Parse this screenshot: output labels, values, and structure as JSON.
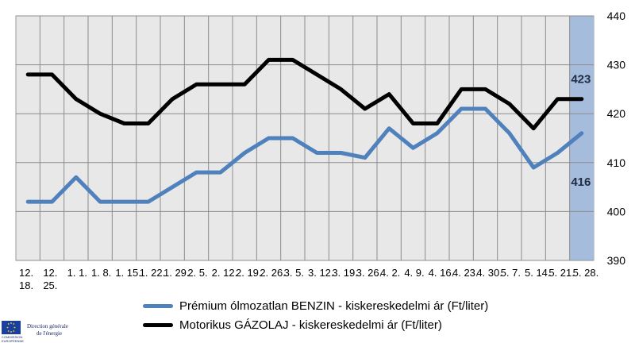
{
  "chart_data": {
    "type": "line",
    "categories": [
      "12.\n18.",
      "12.\n25.",
      "1. 1.",
      "1. 8.",
      "1. 15.",
      "1. 22.",
      "1. 29.",
      "2. 5.",
      "2. 12.",
      "2. 19.",
      "2. 26.",
      "3. 5.",
      "3. 12.",
      "3. 19.",
      "3. 26.",
      "4. 2.",
      "4. 9.",
      "4. 16.",
      "4. 23.",
      "4. 30.",
      "5. 7.",
      "5. 14.",
      "5. 21.",
      "5. 28."
    ],
    "series": [
      {
        "name": "Prémium ólmozatlan BENZIN - kiskereskedelmi ár (Ft/liter)",
        "color": "#4f81bd",
        "values": [
          402,
          402,
          407,
          402,
          402,
          402,
          405,
          408,
          408,
          412,
          415,
          415,
          412,
          412,
          411,
          417,
          413,
          416,
          421,
          421,
          416,
          409,
          412,
          416
        ]
      },
      {
        "name": "Motorikus GÁZOLAJ - kiskereskedelmi ár (Ft/liter)",
        "color": "#000000",
        "values": [
          428,
          428,
          423,
          420,
          418,
          418,
          423,
          426,
          426,
          426,
          431,
          431,
          428,
          425,
          421,
          424,
          418,
          418,
          425,
          425,
          422,
          417,
          423,
          423
        ]
      }
    ],
    "ylim": [
      390,
      440
    ],
    "yticks": [
      390,
      400,
      410,
      420,
      430,
      440
    ],
    "data_labels": [
      "423",
      "416"
    ],
    "highlight_category": "5. 28.",
    "highlight_color": "#a6bcdc",
    "plot_background": "#e8e8e8",
    "grid": true,
    "legend_position": "bottom"
  },
  "logo": {
    "line1": "Direction générale",
    "line2": "de l'énergie",
    "small1": "COMMISSION",
    "small2": "EUROPÉENNE"
  }
}
